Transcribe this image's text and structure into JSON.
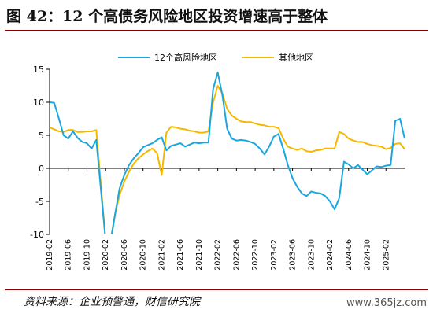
{
  "title": "图 42：12 个高债务风险地区投资增速高于整体",
  "source": "资料来源：企业预警通，财信研究院",
  "watermark": "www.365jz.com",
  "colors": {
    "high_risk": "#1aa6e0",
    "other": "#f5b800",
    "title_rule": "#8b0000"
  },
  "chart_data": {
    "type": "line",
    "ylim": [
      -10,
      15
    ],
    "yticks": [
      -10,
      -5,
      0,
      5,
      10,
      15
    ],
    "grid": false,
    "legend_position": "top",
    "x_start": "2019-02",
    "x_end": "2025-06",
    "xticks": [
      "2019-02",
      "2019-06",
      "2019-10",
      "2020-02",
      "2020-06",
      "2020-10",
      "2021-02",
      "2021-06",
      "2021-10",
      "2022-02",
      "2022-06",
      "2022-10",
      "2023-02",
      "2023-06",
      "2023-10",
      "2024-02",
      "2024-06",
      "2024-10",
      "2025-02"
    ],
    "series": [
      {
        "name": "12个高风险地区",
        "color": "#1aa6e0",
        "points": [
          [
            "2019-02",
            10
          ],
          [
            "2019-03",
            9.9
          ],
          [
            "2019-04",
            7.5
          ],
          [
            "2019-05",
            5
          ],
          [
            "2019-06",
            4.5
          ],
          [
            "2019-07",
            5.6
          ],
          [
            "2019-08",
            4.6
          ],
          [
            "2019-09",
            4
          ],
          [
            "2019-10",
            3.8
          ],
          [
            "2019-11",
            3
          ],
          [
            "2019-12",
            4.3
          ],
          [
            "2020-02",
            -11
          ],
          [
            "2020-03",
            -11.5
          ],
          [
            "2020-04",
            -7
          ],
          [
            "2020-05",
            -3
          ],
          [
            "2020-06",
            -1
          ],
          [
            "2020-07",
            0.5
          ],
          [
            "2020-08",
            1.5
          ],
          [
            "2020-09",
            2.3
          ],
          [
            "2020-10",
            3.2
          ],
          [
            "2020-11",
            3.5
          ],
          [
            "2020-12",
            3.8
          ],
          [
            "2021-01",
            4.3
          ],
          [
            "2021-02",
            4.7
          ],
          [
            "2021-03",
            2.7
          ],
          [
            "2021-04",
            3.4
          ],
          [
            "2021-05",
            3.6
          ],
          [
            "2021-06",
            3.8
          ],
          [
            "2021-07",
            3.3
          ],
          [
            "2021-08",
            3.6
          ],
          [
            "2021-09",
            3.9
          ],
          [
            "2021-10",
            3.8
          ],
          [
            "2021-11",
            3.9
          ],
          [
            "2021-12",
            3.9
          ],
          [
            "2022-01",
            12
          ],
          [
            "2022-02",
            14.5
          ],
          [
            "2022-03",
            11
          ],
          [
            "2022-04",
            6
          ],
          [
            "2022-05",
            4.5
          ],
          [
            "2022-06",
            4.2
          ],
          [
            "2022-07",
            4.3
          ],
          [
            "2022-08",
            4.2
          ],
          [
            "2022-09",
            4
          ],
          [
            "2022-10",
            3.7
          ],
          [
            "2022-11",
            3
          ],
          [
            "2022-12",
            2.1
          ],
          [
            "2023-01",
            3.3
          ],
          [
            "2023-02",
            4.8
          ],
          [
            "2023-03",
            5.2
          ],
          [
            "2023-04",
            3
          ],
          [
            "2023-05",
            0.5
          ],
          [
            "2023-06",
            -1.5
          ],
          [
            "2023-07",
            -2.8
          ],
          [
            "2023-08",
            -3.8
          ],
          [
            "2023-09",
            -4.2
          ],
          [
            "2023-10",
            -3.5
          ],
          [
            "2023-11",
            -3.7
          ],
          [
            "2023-12",
            -3.8
          ],
          [
            "2024-01",
            -4.2
          ],
          [
            "2024-02",
            -5
          ],
          [
            "2024-03",
            -6.2
          ],
          [
            "2024-04",
            -4.5
          ],
          [
            "2024-05",
            1
          ],
          [
            "2024-06",
            0.6
          ],
          [
            "2024-07",
            0
          ],
          [
            "2024-08",
            0.5
          ],
          [
            "2024-09",
            -0.2
          ],
          [
            "2024-10",
            -0.9
          ],
          [
            "2024-11",
            -0.3
          ],
          [
            "2024-12",
            0.3
          ],
          [
            "2025-01",
            0.2
          ],
          [
            "2025-02",
            0.4
          ],
          [
            "2025-03",
            0.5
          ],
          [
            "2025-04",
            7.2
          ],
          [
            "2025-05",
            7.5
          ],
          [
            "2025-06",
            4.5
          ]
        ]
      },
      {
        "name": "其他地区",
        "color": "#f5b800",
        "points": [
          [
            "2019-02",
            6.2
          ],
          [
            "2019-03",
            5.9
          ],
          [
            "2019-04",
            5.6
          ],
          [
            "2019-05",
            5.5
          ],
          [
            "2019-06",
            5.8
          ],
          [
            "2019-07",
            5.8
          ],
          [
            "2019-08",
            5.5
          ],
          [
            "2019-09",
            5.5
          ],
          [
            "2019-10",
            5.6
          ],
          [
            "2019-11",
            5.6
          ],
          [
            "2019-12",
            5.8
          ],
          [
            "2020-02",
            -11
          ],
          [
            "2020-03",
            -11
          ],
          [
            "2020-04",
            -7
          ],
          [
            "2020-05",
            -4
          ],
          [
            "2020-06",
            -2
          ],
          [
            "2020-07",
            -0.5
          ],
          [
            "2020-08",
            0.7
          ],
          [
            "2020-09",
            1.5
          ],
          [
            "2020-10",
            2.1
          ],
          [
            "2020-11",
            2.6
          ],
          [
            "2020-12",
            3
          ],
          [
            "2021-01",
            2.3
          ],
          [
            "2021-02",
            -1
          ],
          [
            "2021-03",
            5.4
          ],
          [
            "2021-04",
            6.3
          ],
          [
            "2021-05",
            6.2
          ],
          [
            "2021-06",
            6
          ],
          [
            "2021-07",
            5.9
          ],
          [
            "2021-08",
            5.7
          ],
          [
            "2021-09",
            5.6
          ],
          [
            "2021-10",
            5.4
          ],
          [
            "2021-11",
            5.4
          ],
          [
            "2021-12",
            5.6
          ],
          [
            "2022-01",
            10
          ],
          [
            "2022-02",
            12.5
          ],
          [
            "2022-03",
            11.3
          ],
          [
            "2022-04",
            9
          ],
          [
            "2022-05",
            8
          ],
          [
            "2022-06",
            7.5
          ],
          [
            "2022-07",
            7.1
          ],
          [
            "2022-08",
            7
          ],
          [
            "2022-09",
            7
          ],
          [
            "2022-10",
            6.8
          ],
          [
            "2022-11",
            6.6
          ],
          [
            "2022-12",
            6.5
          ],
          [
            "2023-01",
            6.3
          ],
          [
            "2023-02",
            6.3
          ],
          [
            "2023-03",
            6.1
          ],
          [
            "2023-04",
            4.5
          ],
          [
            "2023-05",
            3.3
          ],
          [
            "2023-06",
            3
          ],
          [
            "2023-07",
            2.8
          ],
          [
            "2023-08",
            3
          ],
          [
            "2023-09",
            2.6
          ],
          [
            "2023-10",
            2.5
          ],
          [
            "2023-11",
            2.7
          ],
          [
            "2023-12",
            2.8
          ],
          [
            "2024-01",
            3
          ],
          [
            "2024-02",
            3
          ],
          [
            "2024-03",
            3
          ],
          [
            "2024-04",
            5.5
          ],
          [
            "2024-05",
            5.2
          ],
          [
            "2024-06",
            4.5
          ],
          [
            "2024-07",
            4.2
          ],
          [
            "2024-08",
            4
          ],
          [
            "2024-09",
            4
          ],
          [
            "2024-10",
            3.7
          ],
          [
            "2024-11",
            3.5
          ],
          [
            "2024-12",
            3.4
          ],
          [
            "2025-01",
            3.3
          ],
          [
            "2025-02",
            2.9
          ],
          [
            "2025-03",
            3.1
          ],
          [
            "2025-04",
            3.7
          ],
          [
            "2025-05",
            3.8
          ],
          [
            "2025-06",
            2.9
          ]
        ]
      }
    ]
  }
}
